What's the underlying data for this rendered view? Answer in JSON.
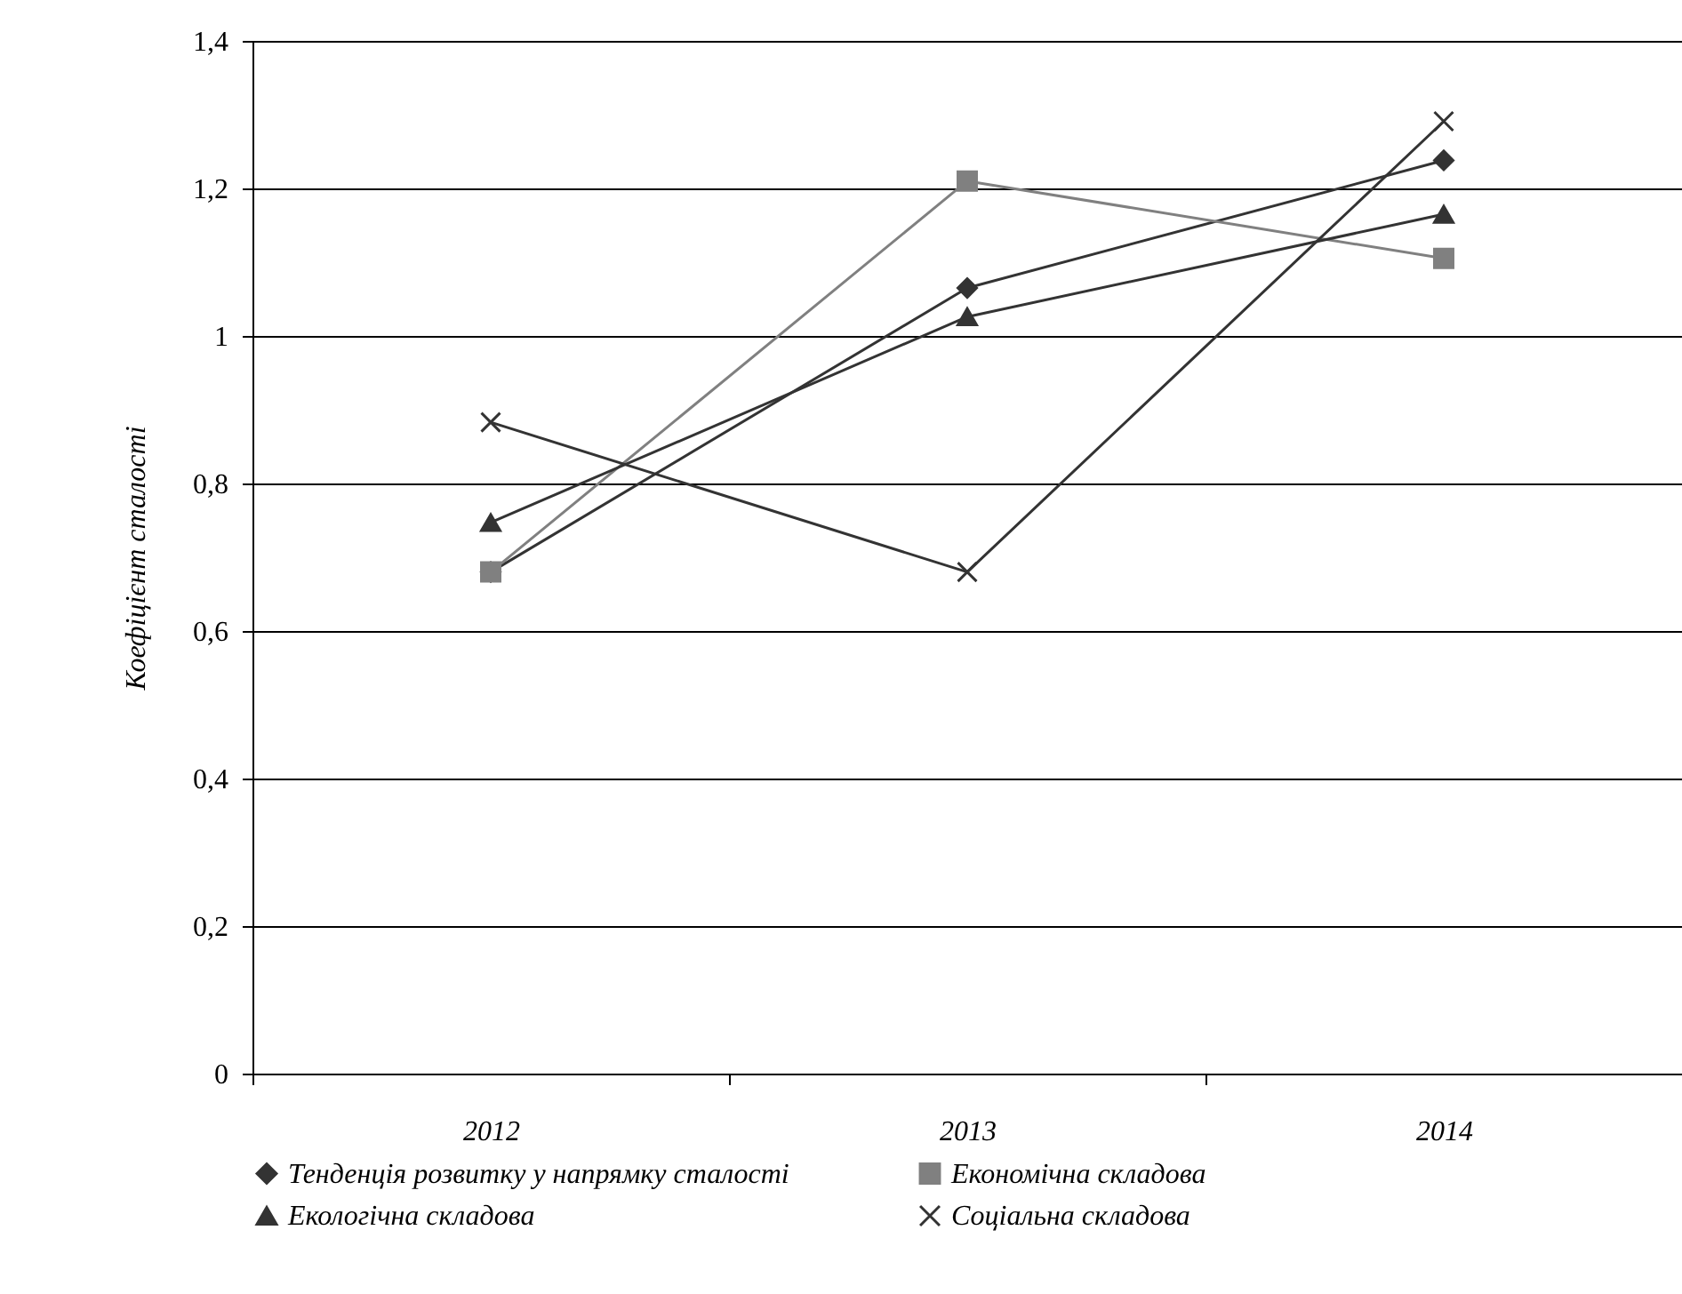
{
  "chart_data": {
    "type": "line",
    "ylabel": "Коефіцієнт сталості",
    "categories": [
      "2012",
      "2013",
      "2014"
    ],
    "series": [
      {
        "name": "Тенденція розвитку у напрямку сталості",
        "color": "#333333",
        "marker": "diamond",
        "values": [
          0.68,
          1.065,
          1.238
        ]
      },
      {
        "name": "Економічна складова",
        "color": "#808080",
        "marker": "square",
        "values": [
          0.68,
          1.21,
          1.105
        ]
      },
      {
        "name": "Екологічна складова",
        "color": "#333333",
        "marker": "triangle",
        "values": [
          0.747,
          1.026,
          1.165
        ]
      },
      {
        "name": "Соціальна складова",
        "color": "#333333",
        "marker": "cross",
        "values": [
          0.883,
          0.68,
          1.291
        ]
      }
    ],
    "ylim": [
      0,
      1.4
    ],
    "yticks": [
      0,
      {
        "value": 0.2,
        "label": "0,2"
      },
      {
        "value": 0.4,
        "label": "0,4"
      },
      {
        "value": 0.6,
        "label": "0,6"
      },
      {
        "value": 0.8,
        "label": "0,8"
      },
      1,
      {
        "value": 1.2,
        "label": "1,2"
      },
      {
        "value": 1.4,
        "label": "1,4"
      }
    ],
    "grid": "y",
    "legend": "bottom"
  }
}
